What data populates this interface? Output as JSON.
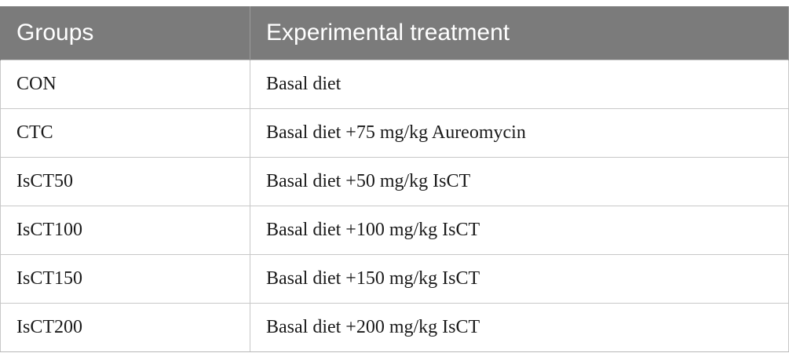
{
  "table": {
    "headers": [
      "Groups",
      "Experimental treatment"
    ],
    "rows": [
      [
        "CON",
        "Basal diet"
      ],
      [
        "CTC",
        "Basal diet +75 mg/kg Aureomycin"
      ],
      [
        "IsCT50",
        "Basal diet +50 mg/kg IsCT"
      ],
      [
        "IsCT100",
        "Basal diet +100 mg/kg IsCT"
      ],
      [
        "IsCT150",
        "Basal diet +150 mg/kg IsCT"
      ],
      [
        "IsCT200",
        "Basal diet +200 mg/kg IsCT"
      ]
    ]
  },
  "colors": {
    "header_background": "#7b7b7b",
    "header_text": "#ffffff",
    "grid_line": "#c8c8c8"
  }
}
